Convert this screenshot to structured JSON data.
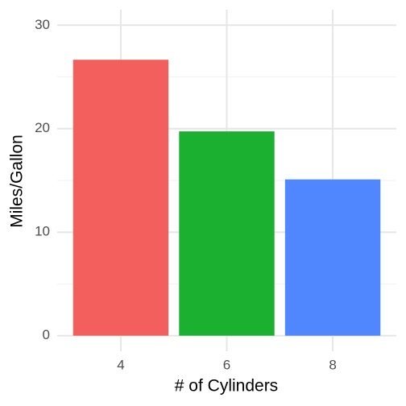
{
  "chart_data": {
    "type": "bar",
    "x_label": "# of Cylinders",
    "y_label": "Miles/Gallon",
    "categories": [
      "4",
      "6",
      "8"
    ],
    "values": [
      26.66,
      19.74,
      15.1
    ],
    "colors": [
      "#f25f5c",
      "#1bb030",
      "#5087ff"
    ],
    "ylim": [
      -1.5,
      31.5
    ],
    "yticks": [
      0,
      10,
      20,
      30
    ],
    "y_minor_ticks": [
      5,
      15,
      25
    ],
    "grid": true
  }
}
